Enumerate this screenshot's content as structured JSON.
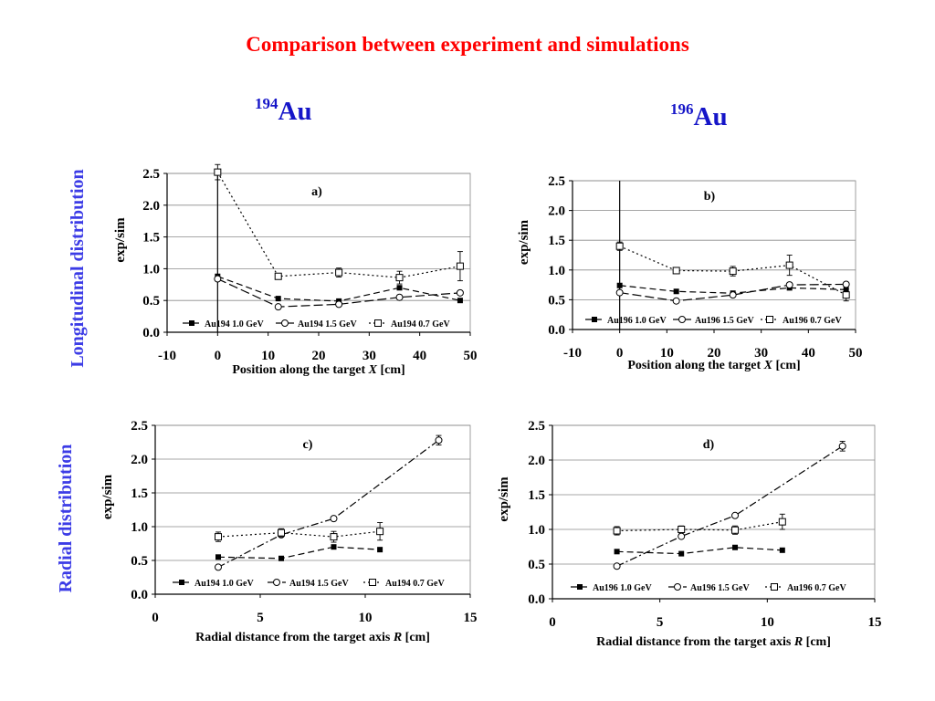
{
  "page": {
    "title": "Comparison between experiment and simulations",
    "isotopes": [
      {
        "mass": "194",
        "symbol": "Au"
      },
      {
        "mass": "196",
        "symbol": "Au"
      }
    ],
    "row_labels": [
      "Longitudinal distribution",
      "Radial distribution"
    ]
  },
  "chart_data": [
    {
      "type": "line",
      "title": "a)",
      "xlabel_prefix": "Position along the target ",
      "xlabel_var": "X",
      "xlabel_suffix": "  [cm]",
      "ylabel": "exp/sim",
      "xlim": [
        -10,
        50
      ],
      "ylim": [
        0,
        2.5
      ],
      "x_ticks": [
        -10,
        0,
        10,
        20,
        30,
        40,
        50
      ],
      "y_ticks": [
        0,
        0.5,
        1,
        1.5,
        2,
        2.5
      ],
      "y_tick_labels": [
        "0.0",
        "0.5",
        "1.0",
        "1.5",
        "2.0",
        "2.5"
      ],
      "grid": true,
      "legend": "bottom",
      "series": [
        {
          "name": "Au194  1.0 GeV",
          "marker": "square-filled",
          "dash": "dash",
          "x": [
            0,
            12,
            24,
            36,
            48
          ],
          "y": [
            0.88,
            0.53,
            0.49,
            0.7,
            0.5
          ],
          "err": [
            0,
            0,
            0,
            0,
            0
          ]
        },
        {
          "name": "Au194  1.5 GeV",
          "marker": "circle-open",
          "dash": "longdash",
          "x": [
            0,
            12,
            24,
            36,
            48
          ],
          "y": [
            0.84,
            0.4,
            0.44,
            0.55,
            0.62
          ],
          "err": [
            0,
            0,
            0,
            0,
            0
          ]
        },
        {
          "name": "Au194  0.7 GeV",
          "marker": "square-open",
          "dash": "dot",
          "x": [
            0,
            12,
            24,
            36,
            48
          ],
          "y": [
            2.52,
            0.88,
            0.94,
            0.86,
            1.04
          ],
          "err": [
            0.12,
            0.04,
            0.07,
            0.1,
            0.23
          ]
        }
      ]
    },
    {
      "type": "line",
      "title": "b)",
      "xlabel_prefix": "Position along the target ",
      "xlabel_var": "X",
      "xlabel_suffix": "  [cm]",
      "ylabel": "exp/sim",
      "xlim": [
        -10,
        50
      ],
      "ylim": [
        0,
        2.5
      ],
      "x_ticks": [
        -10,
        0,
        10,
        20,
        30,
        40,
        50
      ],
      "y_ticks": [
        0,
        0.5,
        1,
        1.5,
        2,
        2.5
      ],
      "y_tick_labels": [
        "0.0",
        "0.5",
        "1.0",
        "1.5",
        "2.0",
        "2.5"
      ],
      "grid": true,
      "legend": "bottom",
      "series": [
        {
          "name": "Au196  1.0 GeV",
          "marker": "square-filled",
          "dash": "dash",
          "x": [
            0,
            12,
            24,
            36,
            48
          ],
          "y": [
            0.74,
            0.64,
            0.61,
            0.7,
            0.67
          ],
          "err": [
            0,
            0,
            0,
            0,
            0
          ]
        },
        {
          "name": "Au196  1.5 GeV",
          "marker": "circle-open",
          "dash": "longdash",
          "x": [
            0,
            12,
            24,
            36,
            48
          ],
          "y": [
            0.62,
            0.48,
            0.58,
            0.75,
            0.76
          ],
          "err": [
            0,
            0,
            0,
            0,
            0
          ]
        },
        {
          "name": "Au196  0.7 GeV",
          "marker": "square-open",
          "dash": "dot",
          "x": [
            0,
            12,
            24,
            36,
            48
          ],
          "y": [
            1.4,
            0.99,
            0.98,
            1.08,
            0.58
          ],
          "err": [
            0.07,
            0.04,
            0.08,
            0.17,
            0.1
          ]
        }
      ]
    },
    {
      "type": "line",
      "title": "c)",
      "xlabel_prefix": "Radial distance from the target axis ",
      "xlabel_var": "R",
      "xlabel_suffix": "  [cm]",
      "ylabel": "exp/sim",
      "xlim": [
        0,
        15
      ],
      "ylim": [
        0,
        2.5
      ],
      "x_ticks": [
        0,
        5,
        10,
        15
      ],
      "y_ticks": [
        0,
        0.5,
        1,
        1.5,
        2,
        2.5
      ],
      "y_tick_labels": [
        "0.0",
        "0.5",
        "1.0",
        "1.5",
        "2.0",
        "2.5"
      ],
      "grid": true,
      "legend": "bottom",
      "series": [
        {
          "name": "Au194  1.0 GeV",
          "marker": "square-filled",
          "dash": "dash",
          "x": [
            3,
            6,
            8.5,
            10.7
          ],
          "y": [
            0.55,
            0.53,
            0.7,
            0.66
          ],
          "err": [
            0,
            0,
            0,
            0
          ]
        },
        {
          "name": "Au194  1.5 GeV",
          "marker": "circle-open",
          "dash": "dashdot",
          "x": [
            3,
            6,
            8.5,
            13.5
          ],
          "y": [
            0.4,
            0.88,
            1.12,
            2.28
          ],
          "err": [
            0,
            0,
            0,
            0.07
          ]
        },
        {
          "name": "Au194  0.7 GeV",
          "marker": "square-open",
          "dash": "dot",
          "x": [
            3,
            6,
            8.5,
            10.7
          ],
          "y": [
            0.85,
            0.91,
            0.85,
            0.93
          ],
          "err": [
            0.07,
            0.06,
            0.08,
            0.13
          ]
        }
      ]
    },
    {
      "type": "line",
      "title": "d)",
      "xlabel_prefix": "Radial distance from the target axis ",
      "xlabel_var": "R",
      "xlabel_suffix": "  [cm]",
      "ylabel": "exp/sim",
      "xlim": [
        0,
        15
      ],
      "ylim": [
        0,
        2.5
      ],
      "x_ticks": [
        0,
        5,
        10,
        15
      ],
      "y_ticks": [
        0,
        0.5,
        1,
        1.5,
        2,
        2.5
      ],
      "y_tick_labels": [
        "0.0",
        "0.5",
        "1.0",
        "1.5",
        "2.0",
        "2.5"
      ],
      "grid": true,
      "legend": "bottom",
      "series": [
        {
          "name": "Au196  1.0 GeV",
          "marker": "square-filled",
          "dash": "dash",
          "x": [
            3,
            6,
            8.5,
            10.7
          ],
          "y": [
            0.68,
            0.65,
            0.74,
            0.7
          ],
          "err": [
            0,
            0,
            0,
            0
          ]
        },
        {
          "name": "Au196  1.5 GeV",
          "marker": "circle-open",
          "dash": "dashdot",
          "x": [
            3,
            6,
            8.5,
            13.5
          ],
          "y": [
            0.47,
            0.9,
            1.2,
            2.2
          ],
          "err": [
            0,
            0,
            0,
            0.07
          ]
        },
        {
          "name": "Au196  0.7 GeV",
          "marker": "square-open",
          "dash": "dot",
          "x": [
            3,
            6,
            8.5,
            10.7
          ],
          "y": [
            0.98,
            1.0,
            0.99,
            1.11
          ],
          "err": [
            0.06,
            0.05,
            0.06,
            0.11
          ]
        }
      ]
    }
  ]
}
